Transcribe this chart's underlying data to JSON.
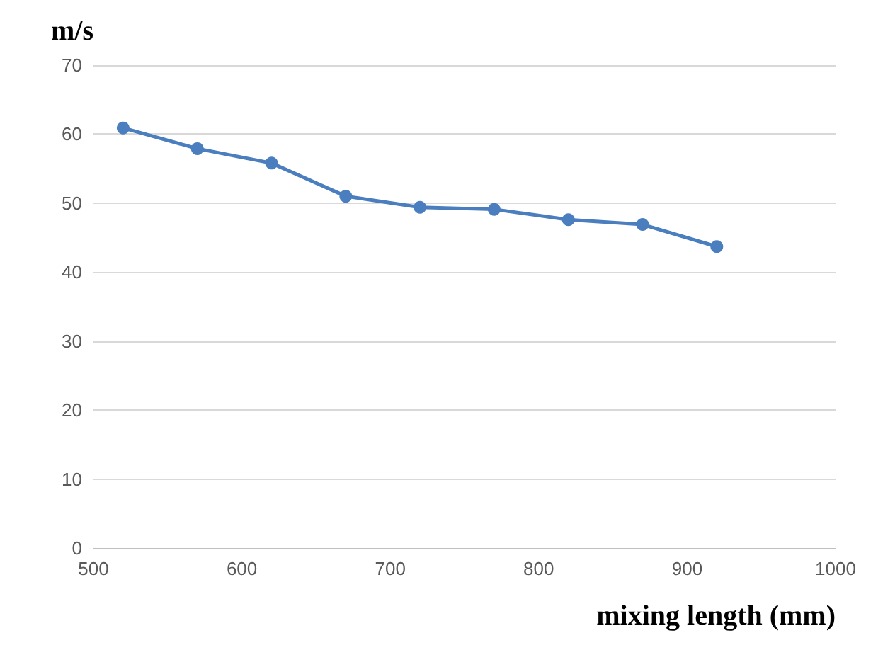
{
  "chart_data": {
    "type": "line",
    "xlabel": "mixing length (mm)",
    "ylabel": "m/s",
    "x": [
      520,
      570,
      620,
      670,
      720,
      770,
      820,
      870,
      920
    ],
    "series": [
      {
        "color": "#4a7ebf",
        "values": [
          60.9,
          57.9,
          55.8,
          51,
          49.4,
          49.1,
          47.6,
          46.9,
          43.7
        ]
      }
    ],
    "xlim": [
      500,
      1000
    ],
    "xticks": [
      500,
      600,
      700,
      800,
      900,
      1000
    ],
    "ylim": [
      0,
      70
    ],
    "yticks": [
      0,
      10,
      20,
      30,
      40,
      50,
      60,
      70
    ],
    "grid": "y",
    "marker": "circle",
    "line_style": "solid"
  }
}
